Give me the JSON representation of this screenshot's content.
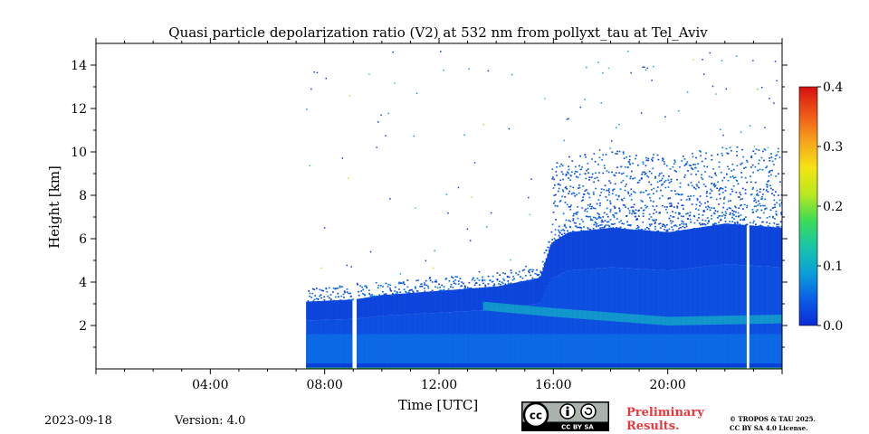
{
  "chart_data": {
    "type": "heatmap",
    "title": "Quasi particle depolarization ratio (V2) at 532 nm from pollyxt_tau at Tel_Aviv",
    "xlabel": "Time [UTC]",
    "ylabel": "Height [km]",
    "x_range_hours": [
      0,
      24
    ],
    "y_range_km": [
      0,
      15
    ],
    "x_ticks": [
      {
        "hour": 4,
        "label": "04:00"
      },
      {
        "hour": 8,
        "label": "08:00"
      },
      {
        "hour": 12,
        "label": "12:00"
      },
      {
        "hour": 16,
        "label": "16:00"
      },
      {
        "hour": 20,
        "label": "20:00"
      }
    ],
    "y_ticks": [
      2,
      4,
      6,
      8,
      10,
      12,
      14
    ],
    "colorbar": {
      "min": 0.0,
      "max": 0.4,
      "ticks": [
        "0.0",
        "0.1",
        "0.2",
        "0.3",
        "0.4"
      ],
      "colors": [
        "#0b2ad6",
        "#0a5ee6",
        "#09a0d8",
        "#18c6a8",
        "#3ddc55",
        "#b8e820",
        "#f5e412",
        "#f7a41c",
        "#ef5a18",
        "#d61010"
      ]
    },
    "data_start_hour": 7.35,
    "gaps_hours": [
      [
        8.95,
        9.1
      ],
      [
        22.7,
        22.85
      ]
    ],
    "cloud_top_km": [
      {
        "hour": 7.35,
        "km": 3.1
      },
      {
        "hour": 9,
        "km": 3.2
      },
      {
        "hour": 10,
        "km": 3.4
      },
      {
        "hour": 12,
        "km": 3.6
      },
      {
        "hour": 14,
        "km": 3.8
      },
      {
        "hour": 15.5,
        "km": 4.2
      },
      {
        "hour": 15.9,
        "km": 5.8
      },
      {
        "hour": 16.5,
        "km": 6.3
      },
      {
        "hour": 18,
        "km": 6.5
      },
      {
        "hour": 20,
        "km": 6.3
      },
      {
        "hour": 22,
        "km": 6.7
      },
      {
        "hour": 24,
        "km": 6.5
      }
    ],
    "aerosol_layer_km": [
      {
        "hour": 13.5,
        "km": 2.9
      },
      {
        "hour": 16,
        "km": 2.6
      },
      {
        "hour": 20,
        "km": 2.2
      },
      {
        "hour": 24,
        "km": 2.3
      }
    ],
    "grid": false,
    "legend": "colorbar-right"
  },
  "footer": {
    "date": "2023-09-18",
    "version": "Version: 4.0",
    "license_badge": "CC BY SA",
    "preliminary_line1": "Preliminary",
    "preliminary_line2": "Results.",
    "copyright_line1": "© TROPOS & TAU 2025.",
    "copyright_line2": "CC BY SA 4.0 License."
  }
}
